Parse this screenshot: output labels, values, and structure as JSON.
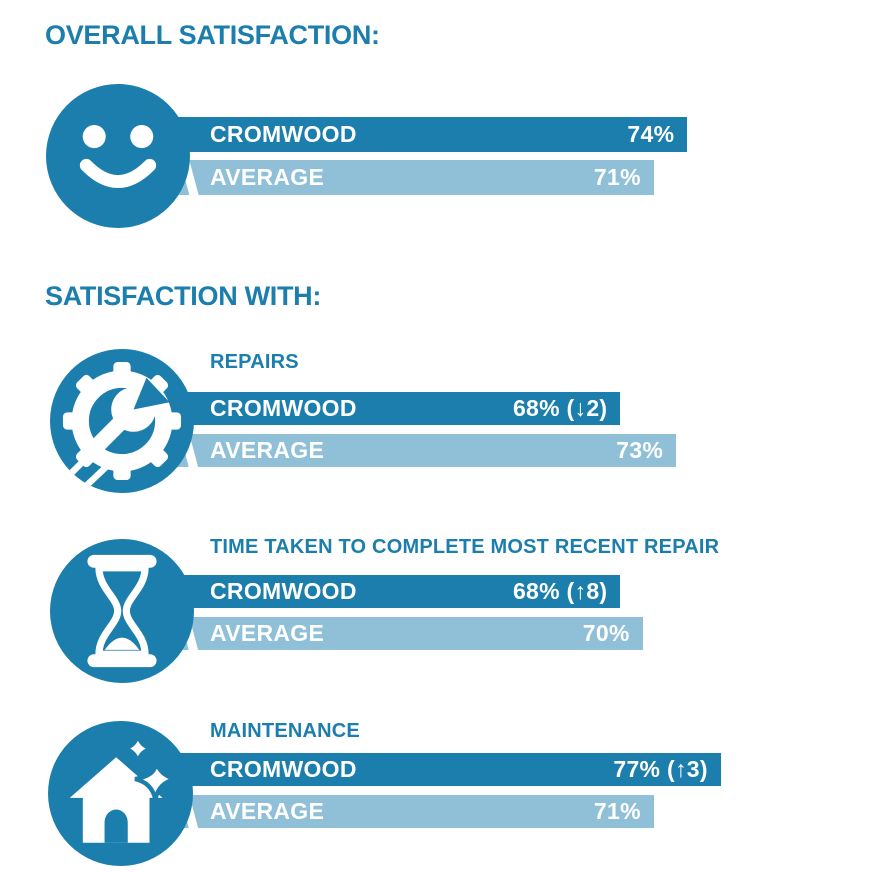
{
  "colors": {
    "brand_dark": "#1B7EAC",
    "brand_light": "#90C0D8",
    "bar_text": "#FFFFFF",
    "background": "#FFFFFF"
  },
  "headings": {
    "overall": "OVERALL SATISFACTION:",
    "satisfaction_with": "SATISFACTION WITH:"
  },
  "labels": {
    "cromwood": "CROMWOOD",
    "average": "AVERAGE"
  },
  "sections": [
    {
      "title": "",
      "icon": "smiley-face-icon",
      "cromwood_display": "74%",
      "cromwood_value": 74,
      "average_display": "71%",
      "average_value": 71
    },
    {
      "title": "REPAIRS",
      "icon": "gear-wrench-icon",
      "cromwood_display": "68% (↓2)",
      "cromwood_value": 68,
      "average_display": "73%",
      "average_value": 73
    },
    {
      "title": "TIME TAKEN TO COMPLETE MOST RECENT REPAIR",
      "icon": "hourglass-icon",
      "cromwood_display": "68% (↑8)",
      "cromwood_value": 68,
      "average_display": "70%",
      "average_value": 70
    },
    {
      "title": "MAINTENANCE",
      "icon": "house-sparkles-icon",
      "cromwood_display": "77% (↑3)",
      "cromwood_value": 77,
      "average_display": "71%",
      "average_value": 71
    }
  ],
  "chart_data": {
    "type": "bar",
    "title": "OVERALL SATISFACTION / SATISFACTION WITH",
    "categories": [
      "Overall satisfaction",
      "Repairs",
      "Time taken to complete most recent repair",
      "Maintenance"
    ],
    "series": [
      {
        "name": "CROMWOOD",
        "values": [
          74,
          68,
          68,
          77
        ],
        "change_annotations": [
          null,
          "↓2",
          "↑8",
          "↑3"
        ]
      },
      {
        "name": "AVERAGE",
        "values": [
          71,
          73,
          70,
          71
        ]
      }
    ],
    "unit": "%",
    "xlim": [
      0,
      100
    ],
    "grid": false,
    "legend_position": "labels-inside-bars"
  }
}
